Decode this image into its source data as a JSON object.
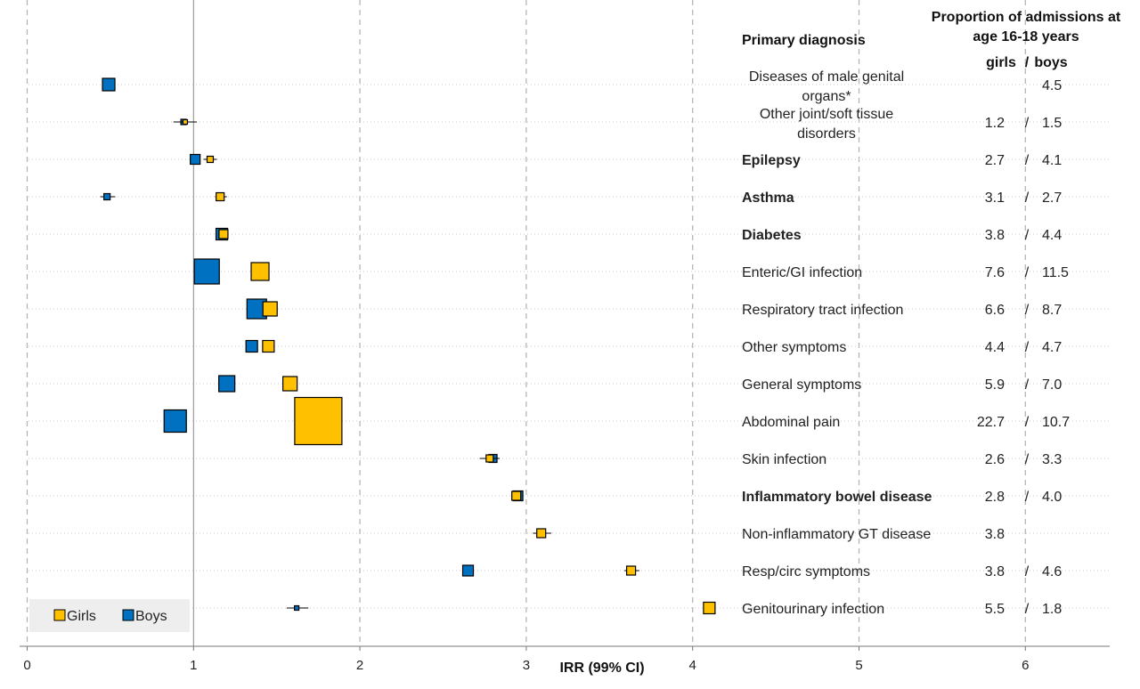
{
  "chart_data": {
    "type": "scatter",
    "subtype": "forest-plot",
    "xlabel": "IRR (99% CI)",
    "xlim": [
      0,
      6.5
    ],
    "x_ticks": [
      "0",
      "1",
      "2",
      "3",
      "4",
      "5",
      "6"
    ],
    "reference_line": 1,
    "grid": "dashed vertical at ticks, dotted horizontal per row",
    "legend": {
      "placement": "bottom-left",
      "entries": [
        "Girls",
        "Boys"
      ]
    },
    "colors": {
      "Girls": "#FFC000",
      "Boys": "#0070C0"
    },
    "column_headers": {
      "diagnosis": "Primary diagnosis",
      "proportion_line1": "Proportion of admissions at",
      "proportion_line2": "age 16-18 years",
      "girls": "girls",
      "slash": "/",
      "boys": "boys"
    },
    "rows": [
      {
        "label": [
          "Diseases of male genital",
          "organs*"
        ],
        "bold": false,
        "girls": null,
        "boys": {
          "irr": 0.49,
          "lo": 0.45,
          "hi": 0.53,
          "size": 14
        },
        "prop_girls": "",
        "prop_boys": "4.5"
      },
      {
        "label": [
          "Other joint/soft tissue",
          "disorders"
        ],
        "bold": false,
        "girls": {
          "irr": 0.95,
          "lo": 0.88,
          "hi": 1.02,
          "size": 5
        },
        "boys": {
          "irr": 0.94,
          "lo": 0.88,
          "hi": 1.0,
          "size": 6
        },
        "prop_girls": "1.2",
        "prop_boys": "1.5"
      },
      {
        "label": [
          "Epilepsy"
        ],
        "bold": true,
        "girls": {
          "irr": 1.1,
          "lo": 1.06,
          "hi": 1.14,
          "size": 7
        },
        "boys": {
          "irr": 1.01,
          "lo": 0.98,
          "hi": 1.04,
          "size": 11
        },
        "prop_girls": "2.7",
        "prop_boys": "4.1"
      },
      {
        "label": [
          "Asthma"
        ],
        "bold": true,
        "girls": {
          "irr": 1.16,
          "lo": 1.13,
          "hi": 1.2,
          "size": 9
        },
        "boys": {
          "irr": 0.48,
          "lo": 0.44,
          "hi": 0.53,
          "size": 7
        },
        "prop_girls": "3.1",
        "prop_boys": "2.7"
      },
      {
        "label": [
          "Diabetes"
        ],
        "bold": true,
        "girls": {
          "irr": 1.18,
          "lo": 1.15,
          "hi": 1.21,
          "size": 10
        },
        "boys": {
          "irr": 1.17,
          "lo": 1.14,
          "hi": 1.2,
          "size": 13
        },
        "prop_girls": "3.8",
        "prop_boys": "4.4"
      },
      {
        "label": [
          "Enteric/GI infection"
        ],
        "bold": false,
        "girls": {
          "irr": 1.4,
          "lo": 1.38,
          "hi": 1.42,
          "size": 20
        },
        "boys": {
          "irr": 1.08,
          "lo": 1.06,
          "hi": 1.1,
          "size": 28
        },
        "prop_girls": "7.6",
        "prop_boys": "11.5"
      },
      {
        "label": [
          "Respiratory tract infection"
        ],
        "bold": false,
        "girls": {
          "irr": 1.46,
          "lo": 1.44,
          "hi": 1.48,
          "size": 16
        },
        "boys": {
          "irr": 1.38,
          "lo": 1.36,
          "hi": 1.4,
          "size": 22
        },
        "prop_girls": "6.6",
        "prop_boys": "8.7"
      },
      {
        "label": [
          "Other symptoms"
        ],
        "bold": false,
        "girls": {
          "irr": 1.45,
          "lo": 1.43,
          "hi": 1.48,
          "size": 13
        },
        "boys": {
          "irr": 1.35,
          "lo": 1.33,
          "hi": 1.38,
          "size": 13
        },
        "prop_girls": "4.4",
        "prop_boys": "4.7"
      },
      {
        "label": [
          "General symptoms"
        ],
        "bold": false,
        "girls": {
          "irr": 1.58,
          "lo": 1.56,
          "hi": 1.6,
          "size": 16
        },
        "boys": {
          "irr": 1.2,
          "lo": 1.18,
          "hi": 1.22,
          "size": 18
        },
        "prop_girls": "5.9",
        "prop_boys": "7.0"
      },
      {
        "label": [
          "Abdominal pain"
        ],
        "bold": false,
        "girls": {
          "irr": 1.75,
          "lo": 1.74,
          "hi": 1.76,
          "size": 53
        },
        "boys": {
          "irr": 0.89,
          "lo": 0.88,
          "hi": 0.9,
          "size": 25
        },
        "prop_girls": "22.7",
        "prop_boys": "10.7"
      },
      {
        "label": [
          "Skin infection"
        ],
        "bold": false,
        "girls": {
          "irr": 2.78,
          "lo": 2.72,
          "hi": 2.84,
          "size": 8
        },
        "boys": {
          "irr": 2.8,
          "lo": 2.76,
          "hi": 2.84,
          "size": 9
        },
        "prop_girls": "2.6",
        "prop_boys": "3.3"
      },
      {
        "label": [
          "Inflammatory bowel disease"
        ],
        "bold": true,
        "girls": {
          "irr": 2.94,
          "lo": 2.91,
          "hi": 2.97,
          "size": 10
        },
        "boys": {
          "irr": 2.95,
          "lo": 2.92,
          "hi": 2.98,
          "size": 11
        },
        "prop_girls": "2.8",
        "prop_boys": "4.0"
      },
      {
        "label": [
          "Non-inflammatory GT disease"
        ],
        "bold": false,
        "girls": {
          "irr": 3.09,
          "lo": 3.04,
          "hi": 3.15,
          "size": 10
        },
        "boys": null,
        "prop_girls": "3.8",
        "prop_boys": ""
      },
      {
        "label": [
          "Resp/circ symptoms"
        ],
        "bold": false,
        "girls": {
          "irr": 3.63,
          "lo": 3.59,
          "hi": 3.68,
          "size": 10
        },
        "boys": {
          "irr": 2.65,
          "lo": 2.62,
          "hi": 2.68,
          "size": 12
        },
        "prop_girls": "3.8",
        "prop_boys": "4.6"
      },
      {
        "label": [
          "Genitourinary infection"
        ],
        "bold": false,
        "girls": {
          "irr": 4.1,
          "lo": 4.07,
          "hi": 4.13,
          "size": 13
        },
        "boys": {
          "irr": 1.62,
          "lo": 1.56,
          "hi": 1.69,
          "size": 5
        },
        "prop_girls": "5.5",
        "prop_boys": "1.8"
      }
    ]
  }
}
